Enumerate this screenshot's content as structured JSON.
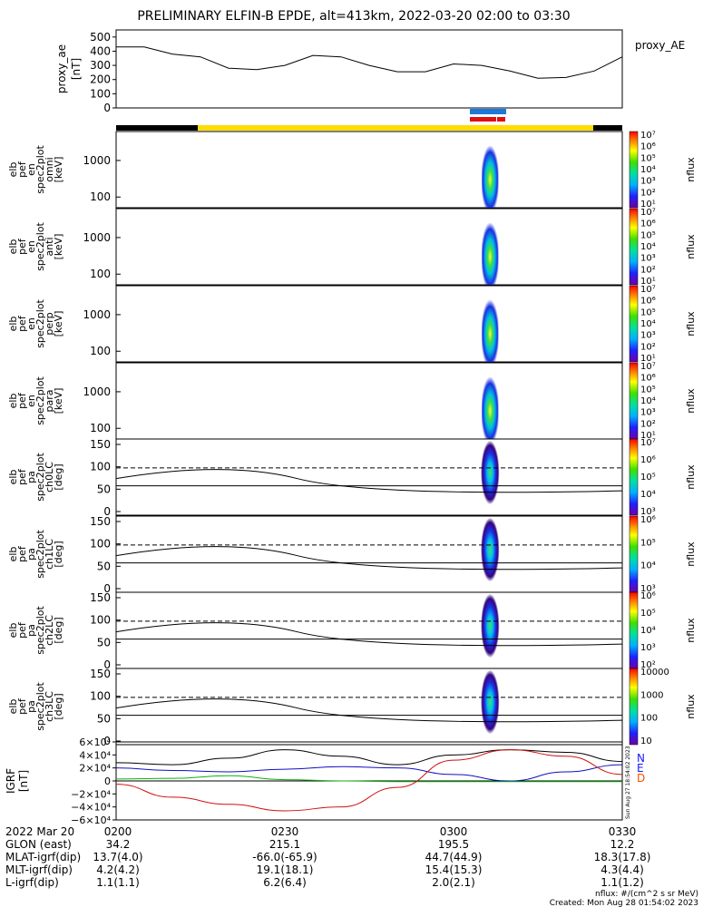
{
  "title": "PRELIMINARY ELFIN-B EPDE, alt=413km, 2022-03-20 02:00 to 03:30",
  "time_range": [
    "02:00",
    "03:30"
  ],
  "ae_panel": {
    "ylabel_line1": "proxy_ae",
    "ylabel_line2": "[nT]",
    "side_label": "proxy_AE",
    "yticks": [
      "500",
      "400",
      "300",
      "200",
      "100",
      "0"
    ]
  },
  "energy_panels": [
    {
      "label": [
        "elb",
        "pef",
        "en",
        "spec2plot",
        "omni",
        "[keV]"
      ],
      "yticks": [
        "1000",
        "100"
      ],
      "cbar_ticks": [
        "10⁷",
        "10⁶",
        "10⁵",
        "10⁴",
        "10³",
        "10²",
        "10¹"
      ],
      "cbar_label": "nflux"
    },
    {
      "label": [
        "elb",
        "pef",
        "en",
        "spec2plot",
        "anti",
        "[keV]"
      ],
      "yticks": [
        "1000",
        "100"
      ],
      "cbar_ticks": [
        "10⁷",
        "10⁶",
        "10⁵",
        "10⁴",
        "10³",
        "10²",
        "10¹"
      ],
      "cbar_label": "nflux"
    },
    {
      "label": [
        "elb",
        "pef",
        "en",
        "spec2plot",
        "perp",
        "[keV]"
      ],
      "yticks": [
        "1000",
        "100"
      ],
      "cbar_ticks": [
        "10⁷",
        "10⁶",
        "10⁵",
        "10⁴",
        "10³",
        "10²",
        "10¹"
      ],
      "cbar_label": "nflux"
    },
    {
      "label": [
        "elb",
        "pef",
        "en",
        "spec2plot",
        "para",
        "[keV]"
      ],
      "yticks": [
        "1000",
        "100"
      ],
      "cbar_ticks": [
        "10⁷",
        "10⁶",
        "10⁵",
        "10⁴",
        "10³",
        "10²",
        "10¹"
      ],
      "cbar_label": "nflux"
    }
  ],
  "pa_panels": [
    {
      "label": [
        "elb",
        "pef",
        "pa",
        "spec2plot",
        "ch0LC",
        "[deg]"
      ],
      "yticks": [
        "150",
        "100",
        "50",
        "0"
      ],
      "cbar_ticks": [
        "10⁷",
        "10⁶",
        "10⁵",
        "10⁴",
        "10³"
      ],
      "cbar_label": "nflux"
    },
    {
      "label": [
        "elb",
        "pef",
        "pa",
        "spec2plot",
        "ch1LC",
        "[deg]"
      ],
      "yticks": [
        "150",
        "100",
        "50",
        "0"
      ],
      "cbar_ticks": [
        "10⁶",
        "10⁵",
        "10⁴",
        "10³"
      ],
      "cbar_label": "nflux"
    },
    {
      "label": [
        "elb",
        "pef",
        "pa",
        "spec2plot",
        "ch2LC",
        "[deg]"
      ],
      "yticks": [
        "150",
        "100",
        "50",
        "0"
      ],
      "cbar_ticks": [
        "10⁶",
        "10⁵",
        "10⁴",
        "10³",
        "10²"
      ],
      "cbar_label": "nflux"
    },
    {
      "label": [
        "elb",
        "pef",
        "pa",
        "spec2plot",
        "ch3LC",
        "[deg]"
      ],
      "yticks": [
        "150",
        "100",
        "50",
        "0"
      ],
      "cbar_ticks": [
        "10000",
        "1000",
        "100",
        "10"
      ],
      "cbar_label": "nflux"
    }
  ],
  "igrf_panel": {
    "ylabel_line1": "IGRF",
    "ylabel_line2": "[nT]",
    "yticks": [
      "6×10⁴",
      "4×10⁴",
      "2×10⁴",
      "0",
      "−2×10⁴",
      "−4×10⁴",
      "−6×10⁴"
    ],
    "legend": [
      {
        "text": "N",
        "color": "#1a1aff"
      },
      {
        "text": "E",
        "color": "#1a1aff"
      },
      {
        "text": "D",
        "color": "#ff4d00"
      }
    ],
    "side_stamp": "Sun Aug 27 18:54:02 2023"
  },
  "footer": {
    "row_labels": [
      "2022 Mar 20",
      "GLON (east)",
      "MLAT-igrf(dip)",
      "MLT-igrf(dip)",
      "L-igrf(dip)"
    ],
    "columns": [
      {
        "time": "0200",
        "glon": "34.2",
        "mlat": "13.7(4.0)",
        "mlt": "4.2(4.2)",
        "l": "1.1(1.1)"
      },
      {
        "time": "0230",
        "glon": "215.1",
        "mlat": "-66.0(-65.9)",
        "mlt": "19.1(18.1)",
        "l": "6.2(6.4)"
      },
      {
        "time": "0300",
        "glon": "195.5",
        "mlat": "44.7(44.9)",
        "mlt": "15.4(15.3)",
        "l": "2.0(2.1)"
      },
      {
        "time": "0330",
        "glon": "12.2",
        "mlat": "18.3(17.8)",
        "mlt": "4.3(4.4)",
        "l": "1.1(1.2)"
      }
    ],
    "units_note": "nflux: #/(cm^2 s sr MeV)",
    "created": "Created: Mon Aug 28 01:54:02 2023"
  },
  "colors": {
    "accent_yellow": "#ffdd00",
    "blue": "#1e78d8",
    "red": "#e01010",
    "igrf_black": "#000000",
    "igrf_blue": "#1010c0",
    "igrf_green": "#10b010",
    "igrf_red": "#d01010"
  },
  "chart_data": [
    {
      "type": "line",
      "series": [
        {
          "name": "proxy_AE",
          "x": [
            "02:00",
            "02:05",
            "02:10",
            "02:15",
            "02:20",
            "02:25",
            "02:30",
            "02:35",
            "02:40",
            "02:45",
            "02:50",
            "02:55",
            "03:00",
            "03:05",
            "03:10",
            "03:15",
            "03:20",
            "03:25",
            "03:30"
          ],
          "values": [
            430,
            430,
            380,
            360,
            280,
            270,
            300,
            370,
            360,
            300,
            255,
            255,
            310,
            300,
            260,
            210,
            215,
            260,
            360
          ]
        }
      ],
      "ylim": [
        0,
        550
      ]
    },
    {
      "type": "line",
      "title": "IGRF",
      "series": [
        {
          "x": [
            "02:00",
            "02:10",
            "02:20",
            "02:30",
            "02:40",
            "02:50",
            "03:00",
            "03:10",
            "03:20",
            "03:30"
          ],
          "values": [
            28000,
            25000,
            35000,
            48000,
            38000,
            25000,
            40000,
            48000,
            44000,
            30000
          ]
        },
        {
          "x": [
            "02:00",
            "02:10",
            "02:20",
            "02:30",
            "02:40",
            "02:50",
            "03:00",
            "03:10",
            "03:20",
            "03:30"
          ],
          "values": [
            20000,
            16000,
            14000,
            18000,
            22000,
            20000,
            10000,
            0,
            14000,
            25000
          ]
        },
        {
          "x": [
            "02:00",
            "02:10",
            "02:20",
            "02:30",
            "02:40",
            "02:50",
            "03:00",
            "03:10",
            "03:20",
            "03:30"
          ],
          "values": [
            3000,
            4000,
            8000,
            2000,
            0,
            -1000,
            -1000,
            -1000,
            -1000,
            -1000
          ]
        },
        {
          "x": [
            "02:00",
            "02:10",
            "02:20",
            "02:30",
            "02:40",
            "02:50",
            "03:00",
            "03:10",
            "03:20",
            "03:30"
          ],
          "values": [
            -5000,
            -25000,
            -36000,
            -46000,
            -40000,
            -10000,
            32000,
            48000,
            38000,
            10000
          ]
        }
      ],
      "ylim": [
        -60000,
        60000
      ]
    },
    {
      "type": "heatmap",
      "note": "electron spectrograms, flux concentrated near 03:05-03:08",
      "active_interval": [
        "03:05",
        "03:08"
      ]
    }
  ]
}
